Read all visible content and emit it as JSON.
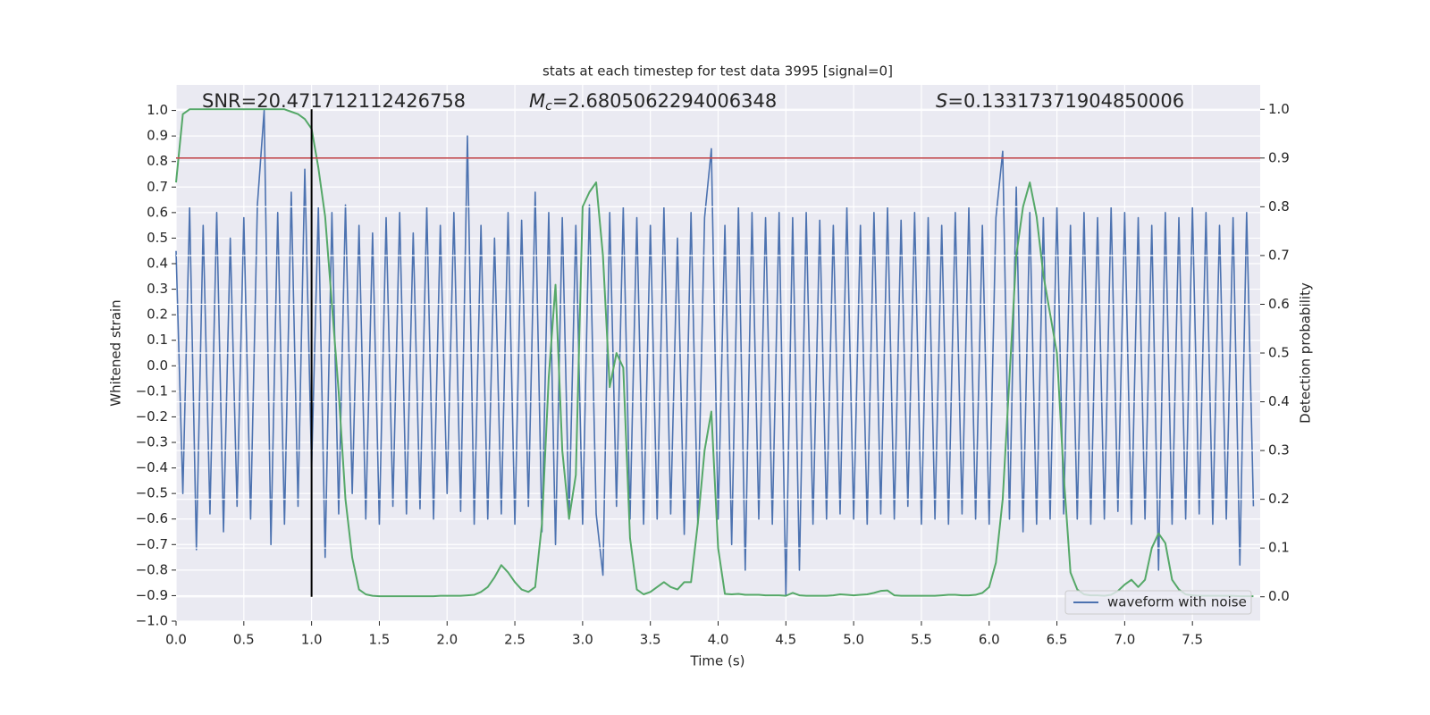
{
  "chart_data": {
    "type": "line",
    "title": "stats at each timestep for test data 3995 [signal=0]",
    "xlabel": "Time (s)",
    "ylabel": "Whitened strain",
    "y2label": "Detection probability",
    "annotations": [
      {
        "text": "SNR=20.471712112426758"
      },
      {
        "symbol": "M",
        "subscript": "c",
        "text": "=2.6805062294006348"
      },
      {
        "symbol": "S",
        "text": "=0.13317371904850006"
      }
    ],
    "xlim": [
      0,
      8
    ],
    "ylim": [
      -1,
      1.1
    ],
    "y2lim": [
      -0.05,
      1.05
    ],
    "xticks": [
      {
        "value": 0,
        "label": "0.0"
      },
      0.5,
      {
        "value": 1,
        "label": "1.0"
      },
      1.5,
      {
        "value": 2,
        "label": "2.0"
      },
      2.5,
      {
        "value": 3,
        "label": "3.0"
      },
      3.5,
      {
        "value": 4,
        "label": "4.0"
      },
      4.5,
      {
        "value": 5,
        "label": "5.0"
      },
      5.5,
      {
        "value": 6,
        "label": "6.0"
      },
      6.5,
      {
        "value": 7,
        "label": "7.0"
      },
      7.5
    ],
    "yticks": [
      {
        "value": -1,
        "label": "−1.0"
      },
      {
        "value": -0.9,
        "label": "−0.9"
      },
      {
        "value": -0.8,
        "label": "−0.8"
      },
      {
        "value": -0.7,
        "label": "−0.7"
      },
      {
        "value": -0.6,
        "label": "−0.6"
      },
      {
        "value": -0.5,
        "label": "−0.5"
      },
      {
        "value": -0.4,
        "label": "−0.4"
      },
      {
        "value": -0.3,
        "label": "−0.3"
      },
      {
        "value": -0.2,
        "label": "−0.2"
      },
      {
        "value": -0.1,
        "label": "−0.1"
      },
      {
        "value": 0,
        "label": "0.0"
      },
      0.1,
      0.2,
      0.3,
      0.4,
      0.5,
      0.6,
      0.7,
      0.8,
      0.9,
      {
        "value": 1,
        "label": "1.0"
      }
    ],
    "y2ticks": [
      {
        "value": 0,
        "label": "0.0"
      },
      0.1,
      0.2,
      0.3,
      0.4,
      0.5,
      0.6,
      0.7,
      0.8,
      0.9,
      {
        "value": 1,
        "label": "1.0"
      }
    ],
    "grid": true,
    "legend_loc": "lower right",
    "threshold": {
      "y2": 0.9,
      "color": "#c44e52"
    },
    "marker_line": {
      "x": 1,
      "color": "#000000"
    },
    "x": [
      0,
      0.05,
      0.1,
      0.15,
      0.2,
      0.25,
      0.3,
      0.35,
      0.4,
      0.45,
      0.5,
      0.55,
      0.6,
      0.65,
      0.7,
      0.75,
      0.8,
      0.85,
      0.9,
      0.95,
      1,
      1.05,
      1.1,
      1.15,
      1.2,
      1.25,
      1.3,
      1.35,
      1.4,
      1.45,
      1.5,
      1.55,
      1.6,
      1.65,
      1.7,
      1.75,
      1.8,
      1.85,
      1.9,
      1.95,
      2,
      2.05,
      2.1,
      2.15,
      2.2,
      2.25,
      2.3,
      2.35,
      2.4,
      2.45,
      2.5,
      2.55,
      2.6,
      2.65,
      2.7,
      2.75,
      2.8,
      2.85,
      2.9,
      2.95,
      3,
      3.05,
      3.1,
      3.15,
      3.2,
      3.25,
      3.3,
      3.35,
      3.4,
      3.45,
      3.5,
      3.55,
      3.6,
      3.65,
      3.7,
      3.75,
      3.8,
      3.85,
      3.9,
      3.95,
      4,
      4.05,
      4.1,
      4.15,
      4.2,
      4.25,
      4.3,
      4.35,
      4.4,
      4.45,
      4.5,
      4.55,
      4.6,
      4.65,
      4.7,
      4.75,
      4.8,
      4.85,
      4.9,
      4.95,
      5,
      5.05,
      5.1,
      5.15,
      5.2,
      5.25,
      5.3,
      5.35,
      5.4,
      5.45,
      5.5,
      5.55,
      5.6,
      5.65,
      5.7,
      5.75,
      5.8,
      5.85,
      5.9,
      5.95,
      6,
      6.05,
      6.1,
      6.15,
      6.2,
      6.25,
      6.3,
      6.35,
      6.4,
      6.45,
      6.5,
      6.55,
      6.6,
      6.65,
      6.7,
      6.75,
      6.8,
      6.85,
      6.9,
      6.95,
      7,
      7.05,
      7.1,
      7.15,
      7.2,
      7.25,
      7.3,
      7.35,
      7.4,
      7.45,
      7.5,
      7.55,
      7.6,
      7.65,
      7.7,
      7.75,
      7.8,
      7.85,
      7.9,
      7.95
    ],
    "series": [
      {
        "name": "waveform with noise",
        "color": "#4c72b0",
        "values": [
          0.45,
          -0.5,
          0.62,
          -0.72,
          0.55,
          -0.58,
          0.6,
          -0.65,
          0.5,
          -0.55,
          0.58,
          -0.6,
          0.63,
          1.0,
          -0.7,
          0.6,
          -0.62,
          0.68,
          -0.55,
          0.77,
          -0.4,
          0.62,
          -0.75,
          0.6,
          -0.58,
          0.63,
          -0.5,
          0.55,
          -0.6,
          0.52,
          -0.62,
          0.58,
          -0.55,
          0.6,
          -0.58,
          0.52,
          -0.56,
          0.62,
          -0.6,
          0.55,
          -0.5,
          0.6,
          -0.57,
          0.9,
          -0.62,
          0.55,
          -0.6,
          0.5,
          -0.58,
          0.6,
          -0.62,
          0.57,
          -0.55,
          0.68,
          -0.65,
          0.6,
          -0.7,
          0.58,
          -0.6,
          0.55,
          -0.62,
          0.63,
          -0.58,
          -0.82,
          0.6,
          -0.55,
          0.62,
          -0.6,
          0.58,
          -0.62,
          0.55,
          -0.6,
          0.62,
          -0.58,
          0.5,
          -0.66,
          0.6,
          -0.62,
          0.58,
          0.85,
          -0.6,
          0.55,
          -0.7,
          0.62,
          -0.8,
          0.6,
          -0.6,
          0.58,
          -0.62,
          0.6,
          -0.9,
          0.58,
          -0.8,
          0.6,
          -0.62,
          0.57,
          -0.6,
          0.55,
          -0.58,
          0.62,
          -0.6,
          0.55,
          -0.62,
          0.6,
          -0.58,
          0.62,
          -0.6,
          0.57,
          -0.55,
          0.6,
          -0.62,
          0.58,
          -0.6,
          0.55,
          -0.62,
          0.6,
          -0.58,
          0.62,
          -0.6,
          0.55,
          -0.62,
          0.58,
          0.84,
          -0.6,
          0.7,
          -0.65,
          0.6,
          -0.62,
          0.58,
          -0.6,
          0.62,
          -0.58,
          0.55,
          -0.6,
          0.6,
          -0.62,
          0.58,
          -0.6,
          0.62,
          -0.57,
          0.6,
          -0.62,
          0.58,
          -0.6,
          0.55,
          -0.8,
          0.6,
          -0.62,
          0.58,
          -0.6,
          0.62,
          -0.58,
          0.6,
          -0.62,
          0.55,
          -0.6,
          0.58,
          -0.78,
          0.6,
          -0.55
        ]
      },
      {
        "color": "#55a868",
        "axis": "y2",
        "values": [
          0.85,
          0.99,
          1.0,
          1.0,
          1.0,
          1.0,
          1.0,
          1.0,
          1.0,
          1.0,
          1.0,
          1.0,
          1.0,
          1.0,
          1.0,
          1.0,
          1.0,
          0.995,
          0.99,
          0.98,
          0.96,
          0.88,
          0.78,
          0.6,
          0.42,
          0.2,
          0.08,
          0.015,
          0.005,
          0.002,
          0.001,
          0.001,
          0.001,
          0.001,
          0.001,
          0.001,
          0.001,
          0.001,
          0.001,
          0.002,
          0.002,
          0.002,
          0.002,
          0.003,
          0.004,
          0.01,
          0.02,
          0.04,
          0.065,
          0.05,
          0.03,
          0.015,
          0.01,
          0.02,
          0.15,
          0.45,
          0.64,
          0.3,
          0.16,
          0.25,
          0.8,
          0.83,
          0.85,
          0.7,
          0.43,
          0.5,
          0.47,
          0.12,
          0.015,
          0.005,
          0.01,
          0.02,
          0.03,
          0.02,
          0.015,
          0.03,
          0.03,
          0.15,
          0.3,
          0.38,
          0.1,
          0.006,
          0.005,
          0.006,
          0.004,
          0.004,
          0.004,
          0.003,
          0.003,
          0.003,
          0.002,
          0.008,
          0.003,
          0.002,
          0.002,
          0.002,
          0.002,
          0.003,
          0.005,
          0.004,
          0.003,
          0.004,
          0.005,
          0.008,
          0.012,
          0.013,
          0.003,
          0.002,
          0.002,
          0.002,
          0.002,
          0.002,
          0.002,
          0.003,
          0.004,
          0.004,
          0.003,
          0.003,
          0.004,
          0.008,
          0.02,
          0.07,
          0.2,
          0.45,
          0.7,
          0.8,
          0.85,
          0.78,
          0.66,
          0.58,
          0.5,
          0.25,
          0.05,
          0.015,
          0.005,
          0.003,
          0.003,
          0.002,
          0.004,
          0.012,
          0.025,
          0.035,
          0.02,
          0.035,
          0.1,
          0.13,
          0.11,
          0.035,
          0.015,
          0.005,
          0.003,
          0.002,
          0.002,
          0.002,
          0.002,
          0.002,
          0.002,
          0.001,
          0.001,
          0.001
        ]
      }
    ]
  }
}
